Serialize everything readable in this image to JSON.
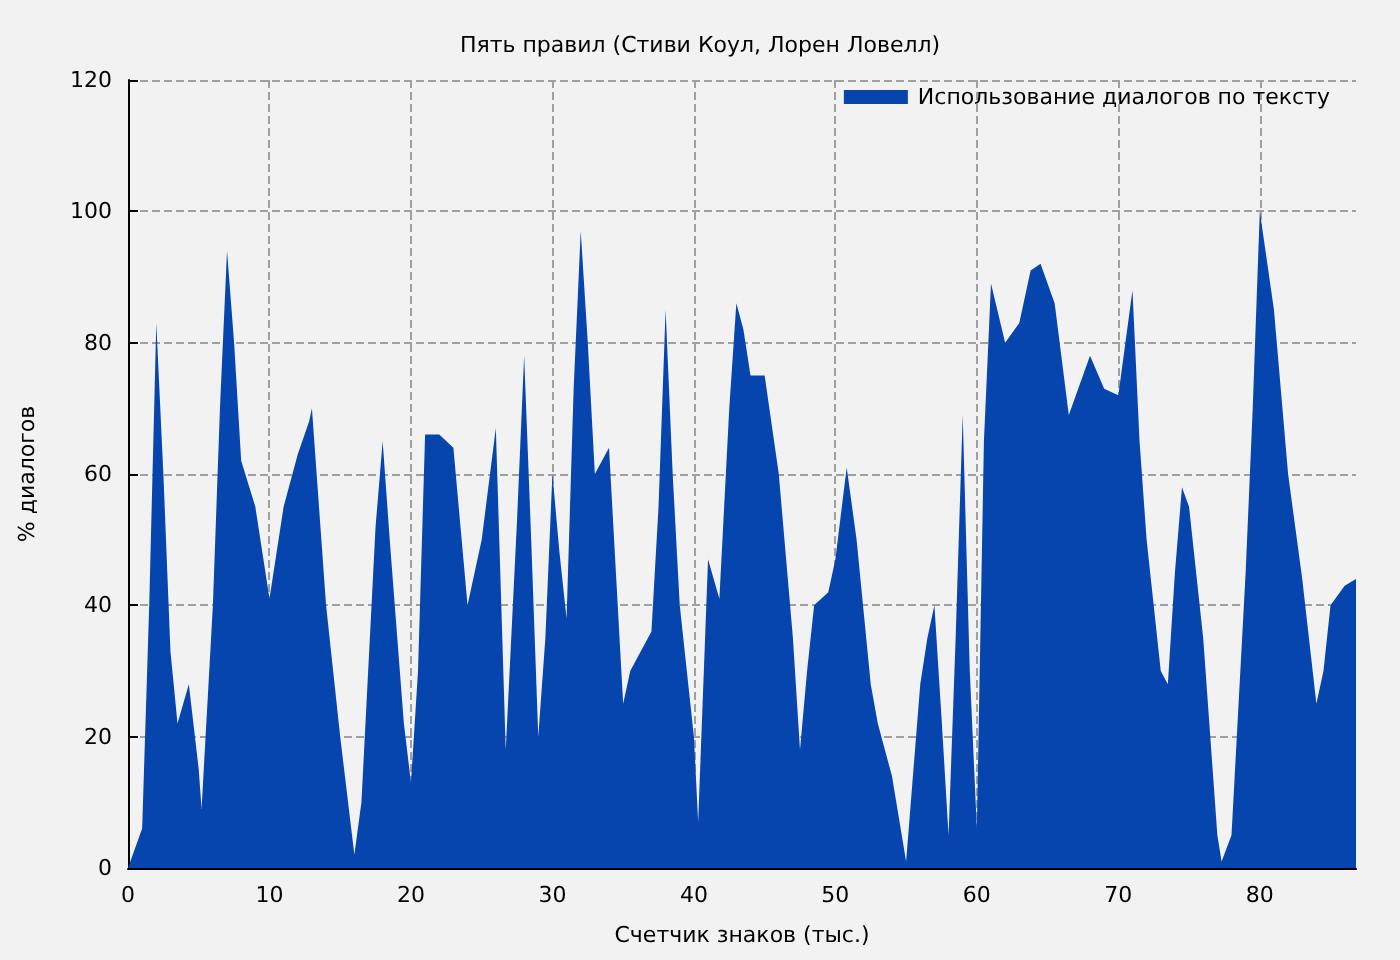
{
  "chart_data": {
    "type": "area",
    "title": "Пять правил (Стиви Коул, Лорен Ловелл)",
    "xlabel": "Счетчик знаков (тыс.)",
    "ylabel": "% диалогов",
    "x": [
      0,
      0.5,
      1,
      1.5,
      2,
      2.5,
      3,
      3.5,
      4.3,
      5,
      5.2,
      6,
      6.5,
      7,
      7.5,
      8,
      9,
      10,
      10.5,
      11,
      12,
      12.8,
      13,
      14,
      15,
      16,
      16.5,
      17.5,
      18,
      18.5,
      19.5,
      20,
      20.5,
      21,
      22,
      23,
      24,
      25,
      26,
      26.7,
      27.5,
      28,
      28.5,
      29,
      29.5,
      30,
      30.5,
      31,
      31.5,
      32,
      32.5,
      33,
      34,
      35,
      35.5,
      36,
      37,
      37.5,
      38,
      38.5,
      39,
      40,
      40.3,
      41,
      41.8,
      42.5,
      43,
      43.5,
      44,
      45,
      46,
      47,
      47.5,
      48,
      48.5,
      49.5,
      50,
      50.8,
      51.5,
      52.5,
      53,
      54,
      55,
      56,
      56.5,
      57,
      57.5,
      58,
      58.5,
      59,
      59.5,
      60,
      60.5,
      61,
      62,
      63,
      63.8,
      64.5,
      65.5,
      66.5,
      67,
      68,
      69,
      70,
      70.5,
      71,
      71.5,
      72,
      73,
      73.5,
      74,
      74.5,
      75,
      76,
      77,
      77.3,
      78,
      79,
      79.5,
      80,
      81,
      82,
      83,
      84,
      84.5,
      85,
      86,
      86.8
    ],
    "series": [
      {
        "name": "Использование диалогов по тексту",
        "color": "#0645ad",
        "values": [
          0,
          3,
          6,
          40,
          83,
          60,
          33,
          22,
          28,
          15,
          9,
          40,
          70,
          94,
          80,
          62,
          55,
          41,
          48,
          55,
          63,
          68,
          70,
          40,
          20,
          2,
          10,
          52,
          65,
          50,
          22,
          13,
          30,
          66,
          66,
          64,
          40,
          50,
          67,
          18,
          53,
          78,
          50,
          20,
          35,
          60,
          48,
          38,
          73,
          97,
          80,
          60,
          64,
          25,
          30,
          32,
          36,
          55,
          85,
          60,
          40,
          20,
          7,
          47,
          41,
          70,
          86,
          82,
          75,
          75,
          60,
          35,
          18,
          30,
          40,
          42,
          47,
          61,
          50,
          28,
          22,
          14,
          1,
          28,
          35,
          40,
          23,
          5,
          35,
          69,
          30,
          6,
          65,
          89,
          80,
          83,
          91,
          92,
          86,
          69,
          72,
          78,
          73,
          72,
          80,
          88,
          65,
          50,
          30,
          28,
          45,
          58,
          55,
          35,
          5,
          1,
          5,
          45,
          70,
          100,
          85,
          60,
          44,
          25,
          30,
          40,
          43,
          44
        ]
      }
    ],
    "xlim": [
      0,
      86.8
    ],
    "ylim": [
      0,
      120
    ],
    "xticks": [
      0,
      10,
      20,
      30,
      40,
      50,
      60,
      70,
      80
    ],
    "yticks": [
      0,
      20,
      40,
      60,
      80,
      100,
      120
    ],
    "grid": true,
    "legend": "top right"
  }
}
